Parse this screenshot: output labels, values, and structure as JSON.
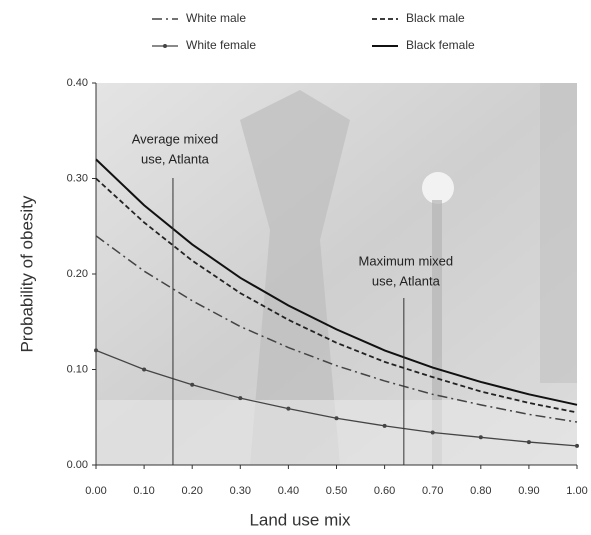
{
  "chart_data": {
    "type": "line",
    "x_label": "Land use mix",
    "y_label": "Probability of obesity",
    "x": [
      0,
      0.1,
      0.2,
      0.3,
      0.4,
      0.5,
      0.6,
      0.7,
      0.8,
      0.9,
      1.0
    ],
    "series": [
      {
        "name": "White male",
        "color": "#444444",
        "line_style": "dash-dot",
        "values": [
          0.24,
          0.203,
          0.172,
          0.145,
          0.123,
          0.104,
          0.088,
          0.074,
          0.063,
          0.053,
          0.045
        ]
      },
      {
        "name": "White female",
        "color": "#444444",
        "line_style": "solid-marker",
        "values": [
          0.12,
          0.1,
          0.084,
          0.07,
          0.059,
          0.049,
          0.041,
          0.034,
          0.029,
          0.024,
          0.02
        ]
      },
      {
        "name": "Black male",
        "color": "#222222",
        "line_style": "dashed",
        "values": [
          0.3,
          0.254,
          0.214,
          0.18,
          0.152,
          0.128,
          0.108,
          0.092,
          0.077,
          0.065,
          0.055
        ]
      },
      {
        "name": "Black female",
        "color": "#111111",
        "line_style": "solid",
        "values": [
          0.32,
          0.272,
          0.231,
          0.196,
          0.167,
          0.142,
          0.12,
          0.102,
          0.087,
          0.074,
          0.063
        ]
      }
    ],
    "annotations": [
      {
        "lines": [
          "Average mixed",
          "use, Atlanta"
        ],
        "x": 0.16
      },
      {
        "lines": [
          "Maximum mixed",
          "use, Atlanta"
        ],
        "x": 0.64
      }
    ],
    "xlim": [
      0,
      1.0
    ],
    "ylim": [
      0,
      0.4
    ],
    "xticks": [
      {
        "value": 0,
        "label": "0.00"
      },
      {
        "value": 0.1,
        "label": "0.10"
      },
      {
        "value": 0.2,
        "label": "0.20"
      },
      {
        "value": 0.3,
        "label": "0.30"
      },
      {
        "value": 0.4,
        "label": "0.40"
      },
      {
        "value": 0.5,
        "label": "0.50"
      },
      {
        "value": 0.6,
        "label": "0.60"
      },
      {
        "value": 0.7,
        "label": "0.70"
      },
      {
        "value": 0.8,
        "label": "0.80"
      },
      {
        "value": 0.9,
        "label": "0.90"
      },
      {
        "value": 1.0,
        "label": "1.00"
      }
    ],
    "yticks": [
      {
        "value": 0,
        "label": "0.00"
      },
      {
        "value": 0.1,
        "label": "0.10"
      },
      {
        "value": 0.2,
        "label": "0.20"
      },
      {
        "value": 0.3,
        "label": "0.30"
      },
      {
        "value": 0.4,
        "label": "0.40"
      }
    ],
    "legend": "top"
  }
}
